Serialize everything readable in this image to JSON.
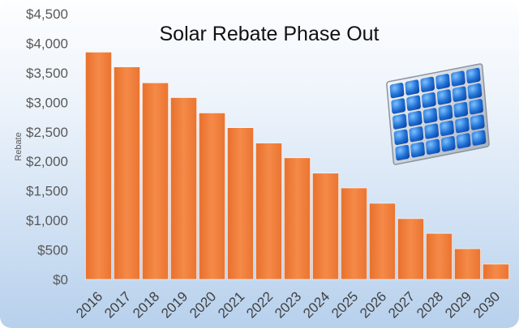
{
  "chart_data": {
    "type": "bar",
    "title": "Solar Rebate Phase Out",
    "xlabel": "",
    "ylabel": "Rebate",
    "categories": [
      "2016",
      "2017",
      "2018",
      "2019",
      "2020",
      "2021",
      "2022",
      "2023",
      "2024",
      "2025",
      "2026",
      "2027",
      "2028",
      "2029",
      "2030"
    ],
    "values": [
      3850,
      3600,
      3330,
      3080,
      2820,
      2570,
      2310,
      2060,
      1800,
      1550,
      1290,
      1030,
      780,
      520,
      260
    ],
    "ylim": [
      0,
      4500
    ],
    "yticks": [
      0,
      500,
      1000,
      1500,
      2000,
      2500,
      3000,
      3500,
      4000,
      4500
    ],
    "ytick_labels": [
      "$0",
      "$500",
      "$1,000",
      "$1,500",
      "$2,000",
      "$2,500",
      "$3,000",
      "$3,500",
      "$4,000",
      "$4,500"
    ],
    "grid": false,
    "legend": "none",
    "bar_color": "#f07f3a",
    "decoration": "solar-panel-icon"
  }
}
